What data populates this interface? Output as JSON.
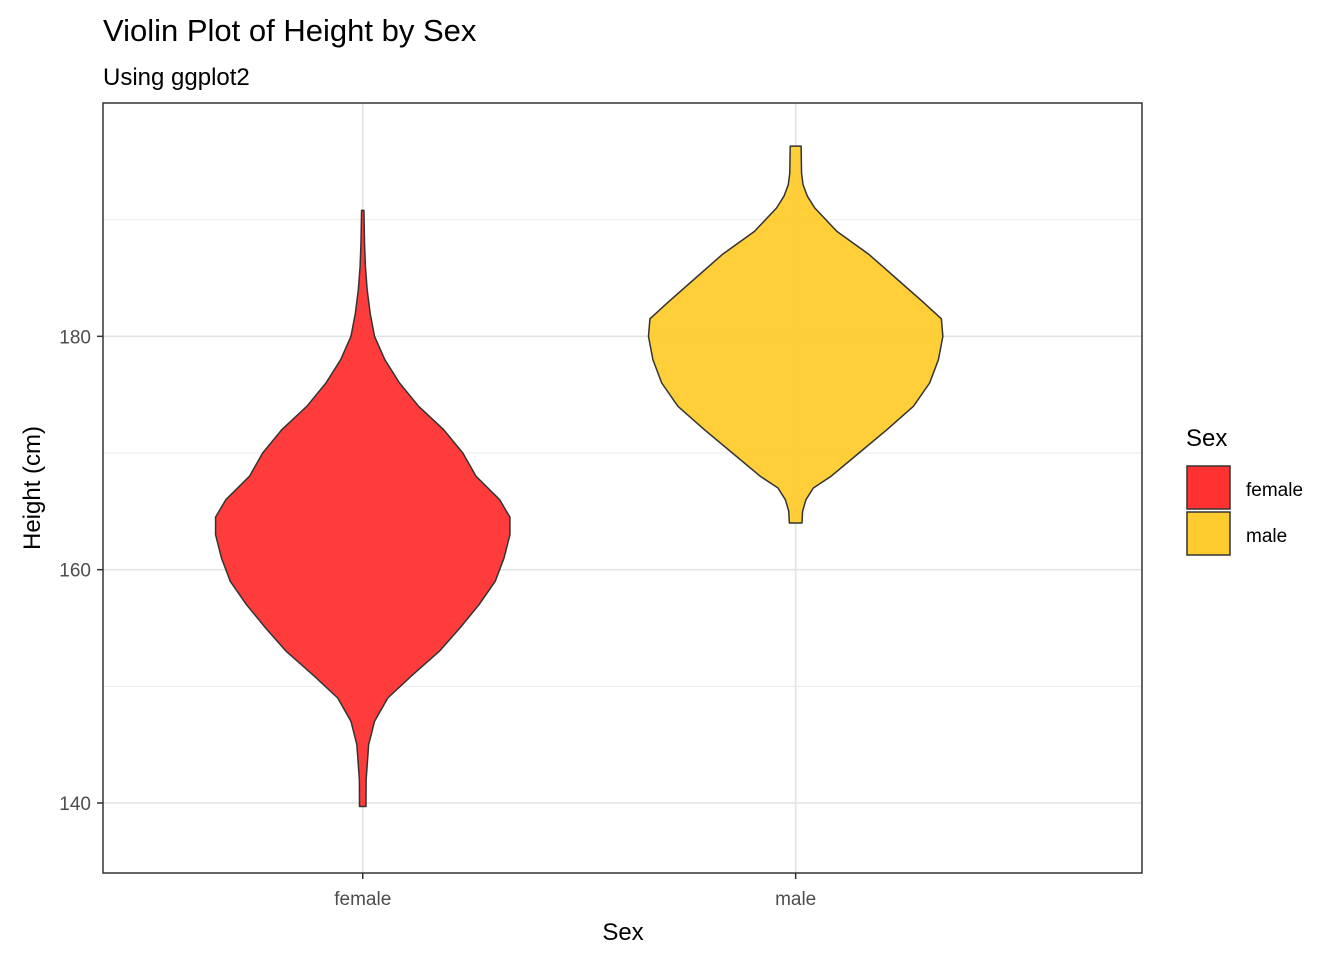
{
  "chart_data": {
    "type": "violin",
    "title": "Violin Plot of Height by Sex",
    "subtitle": "Using ggplot2",
    "xlabel": "Sex",
    "ylabel": "Height (cm)",
    "categories": [
      "female",
      "male"
    ],
    "ylim": [
      134,
      200
    ],
    "yticks": [
      140,
      160,
      180
    ],
    "y_tick_labels": [
      "140",
      "160",
      "180"
    ],
    "grid": true,
    "legend": {
      "title": "Sex",
      "position": "right",
      "items": [
        {
          "label": "female",
          "color": "#FF3131"
        },
        {
          "label": "male",
          "color": "#FFCC2F"
        }
      ]
    },
    "series": [
      {
        "category": "female",
        "color": "#FF3131",
        "y_min": 139.7,
        "y_max": 190.8,
        "profile": [
          [
            139.7,
            0.022
          ],
          [
            142,
            0.023
          ],
          [
            145,
            0.04
          ],
          [
            147,
            0.08
          ],
          [
            149,
            0.17
          ],
          [
            151,
            0.34
          ],
          [
            153,
            0.52
          ],
          [
            155,
            0.66
          ],
          [
            157,
            0.79
          ],
          [
            159,
            0.9
          ],
          [
            161,
            0.96
          ],
          [
            163,
            1.0
          ],
          [
            164.5,
            1.0
          ],
          [
            166,
            0.93
          ],
          [
            168,
            0.77
          ],
          [
            170,
            0.68
          ],
          [
            172,
            0.55
          ],
          [
            174,
            0.38
          ],
          [
            176,
            0.25
          ],
          [
            178,
            0.15
          ],
          [
            180,
            0.08
          ],
          [
            182,
            0.05
          ],
          [
            184,
            0.03
          ],
          [
            186,
            0.018
          ],
          [
            188,
            0.012
          ],
          [
            190.8,
            0.008
          ]
        ]
      },
      {
        "category": "male",
        "color": "#FFCC2F",
        "y_min": 164,
        "y_max": 196.3,
        "profile": [
          [
            164,
            0.043
          ],
          [
            165,
            0.047
          ],
          [
            166,
            0.07
          ],
          [
            167,
            0.12
          ],
          [
            168,
            0.24
          ],
          [
            170,
            0.43
          ],
          [
            172,
            0.62
          ],
          [
            174,
            0.8
          ],
          [
            176,
            0.91
          ],
          [
            178,
            0.97
          ],
          [
            180,
            1.0
          ],
          [
            181.5,
            0.99
          ],
          [
            183,
            0.86
          ],
          [
            185,
            0.68
          ],
          [
            187,
            0.5
          ],
          [
            189,
            0.28
          ],
          [
            191,
            0.13
          ],
          [
            192,
            0.08
          ],
          [
            193,
            0.05
          ],
          [
            194,
            0.04
          ],
          [
            196.3,
            0.037
          ]
        ]
      }
    ]
  }
}
